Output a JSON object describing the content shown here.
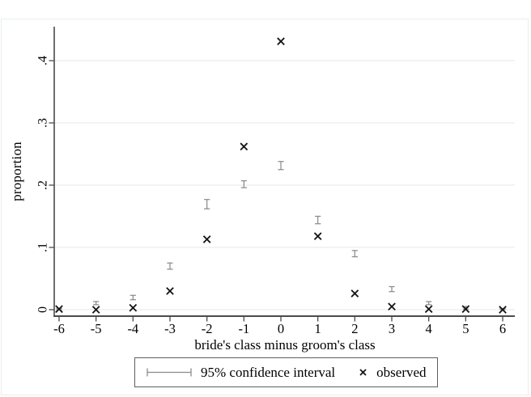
{
  "figure": {
    "background": "#ffffff",
    "border_color": "#e8efec"
  },
  "chart_data": {
    "type": "scatter",
    "title": "",
    "xlabel": "bride's class minus groom's class",
    "ylabel": "proportion",
    "x": [
      -6,
      -5,
      -4,
      -3,
      -2,
      -1,
      0,
      1,
      2,
      3,
      4,
      5,
      6
    ],
    "xtick_labels": [
      "-6",
      "-5",
      "-4",
      "-3",
      "-2",
      "-1",
      "0",
      "1",
      "2",
      "3",
      "4",
      "5",
      "6"
    ],
    "yticks": [
      0,
      0.1,
      0.2,
      0.3,
      0.4
    ],
    "ytick_labels": [
      "0",
      ".1",
      ".2",
      ".3",
      ".4"
    ],
    "ylim": [
      0,
      0.46
    ],
    "xlim": [
      -6.6,
      6.6
    ],
    "grid": "horizontal-light",
    "legend_position": "bottom-center",
    "series": [
      {
        "name": "95% confidence interval",
        "type": "errorbar",
        "color": "#8c8c8c",
        "ci_low": [
          0.0,
          0.008,
          0.016,
          0.065,
          0.162,
          0.196,
          0.225,
          0.138,
          0.085,
          0.029,
          0.008,
          0.001,
          0.0
        ],
        "ci_high": [
          0.002,
          0.013,
          0.023,
          0.075,
          0.177,
          0.207,
          0.238,
          0.15,
          0.095,
          0.037,
          0.013,
          0.005,
          0.002
        ]
      },
      {
        "name": "observed",
        "type": "scatter",
        "marker": "x",
        "color": "#141414",
        "values": [
          0.001,
          0.0,
          0.003,
          0.03,
          0.113,
          0.262,
          0.431,
          0.118,
          0.026,
          0.005,
          0.001,
          0.001,
          0.0
        ]
      }
    ],
    "colors": {
      "grid": "#e6efed",
      "axis": "#4a4a4a",
      "text": "#000000"
    }
  }
}
